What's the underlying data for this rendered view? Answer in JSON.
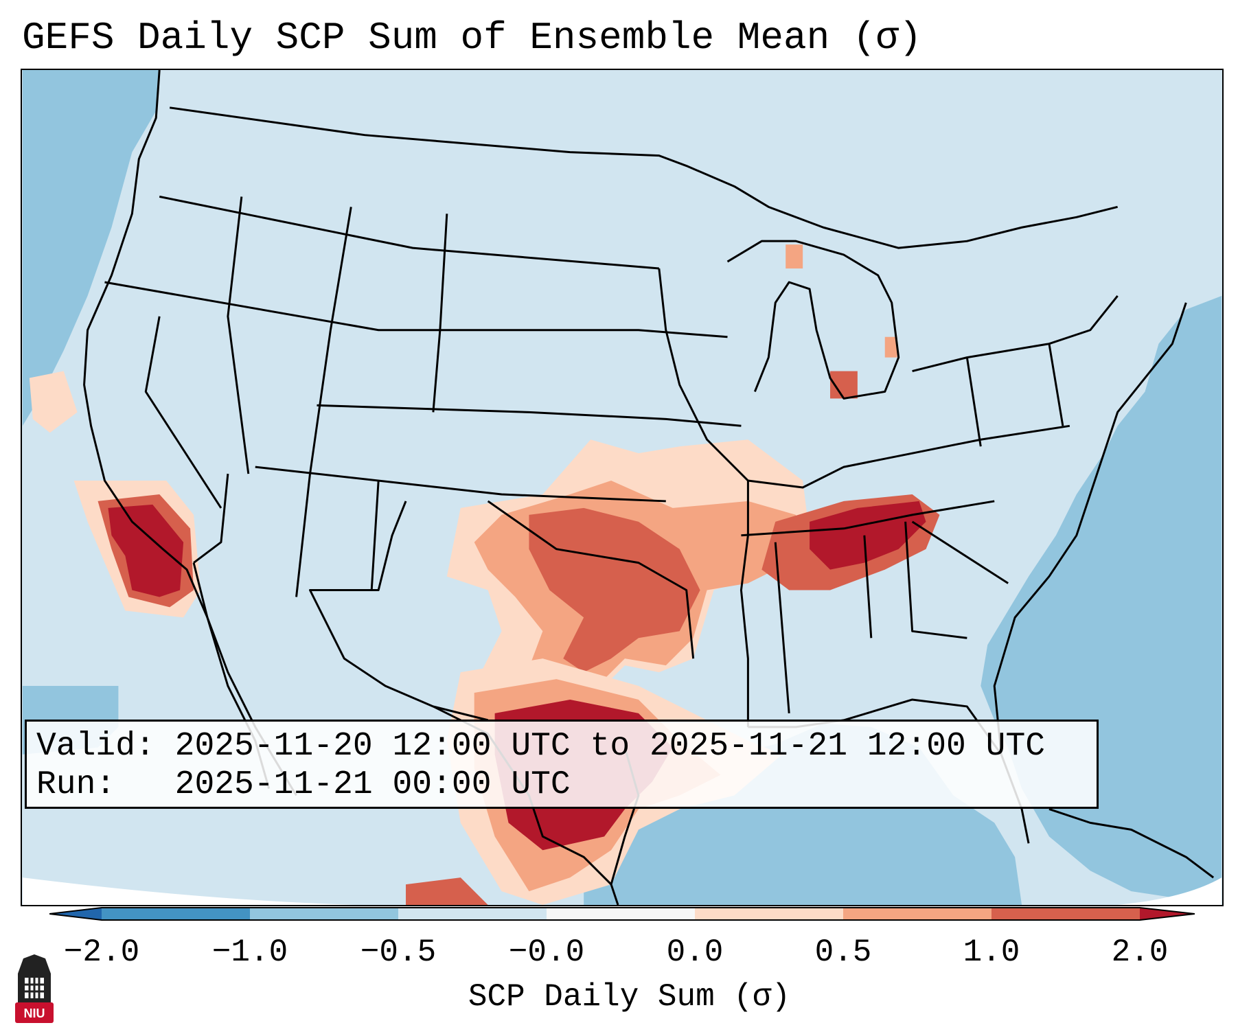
{
  "title": "GEFS Daily SCP Sum of Ensemble Mean (σ)",
  "info": {
    "valid_label": "Valid:",
    "valid_text": "2025-11-20 12:00 UTC to 2025-11-21 12:00 UTC",
    "run_label": "Run:",
    "run_text": "2025-11-21 00:00 UTC"
  },
  "colorbar": {
    "label": "SCP Daily Sum (σ)",
    "ticks": [
      "−2.0",
      "−1.0",
      "−0.5",
      "−0.0",
      "0.0",
      "0.5",
      "1.0",
      "2.0"
    ],
    "colors": [
      "#4393c3",
      "#92c5de",
      "#d1e5f0",
      "#f7f7f7",
      "#fddbc7",
      "#f4a582",
      "#d6604d",
      "#b2182b"
    ],
    "under_color": "#2166ac",
    "over_color": "#b2182b"
  },
  "logo": {
    "text": "NIU",
    "icon": "niu-tower-icon",
    "color": "#c8102e"
  },
  "map_colors": {
    "ocean": "#92c5de",
    "land": "#d1e5f0",
    "border": "#000000"
  }
}
